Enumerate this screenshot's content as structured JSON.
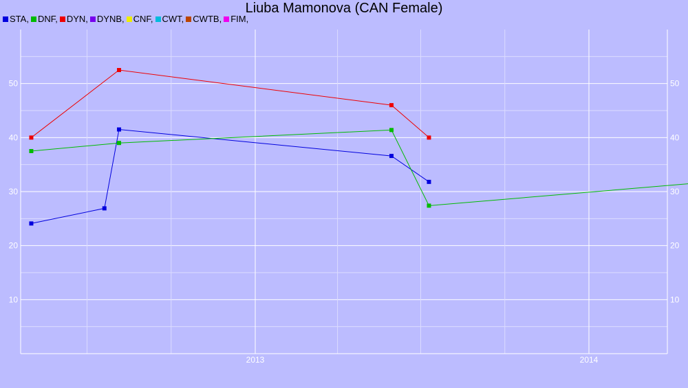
{
  "chart_data": {
    "type": "line",
    "title": "Liuba Mamonova (CAN Female)",
    "x_ticks": [
      "2013",
      "2014"
    ],
    "y_ticks": [
      10,
      20,
      30,
      40,
      50
    ],
    "ylim": [
      0,
      60
    ],
    "grid": true,
    "legend": [
      {
        "name": "STA",
        "label": "STA,",
        "color": "#0000dd"
      },
      {
        "name": "DNF",
        "label": "DNF,",
        "color": "#00bb00"
      },
      {
        "name": "DYN",
        "label": "DYN,",
        "color": "#ee0000"
      },
      {
        "name": "DYNB",
        "label": "DYNB,",
        "color": "#7700ee"
      },
      {
        "name": "CNF",
        "label": "CNF,",
        "color": "#eeee00"
      },
      {
        "name": "CWT",
        "label": "CWT,",
        "color": "#00bbdd"
      },
      {
        "name": "CWTB",
        "label": "CWTB,",
        "color": "#bb4400"
      },
      {
        "name": "FIM",
        "label": "FIM,",
        "color": "#ee00ee"
      }
    ],
    "series": [
      {
        "name": "STA",
        "color": "#0000dd",
        "points": [
          [
            "2012-05-01",
            24.1
          ],
          [
            "2012-07-20",
            26.9
          ],
          [
            "2012-08-05",
            41.5
          ],
          [
            "2013-05-30",
            36.6
          ],
          [
            "2013-07-10",
            31.8
          ]
        ]
      },
      {
        "name": "DNF",
        "color": "#00bb00",
        "points": [
          [
            "2012-05-01",
            37.5
          ],
          [
            "2012-08-05",
            39.0
          ],
          [
            "2013-05-30",
            41.4
          ],
          [
            "2013-07-10",
            27.4
          ],
          [
            "2014-09-10",
            33.5
          ]
        ]
      },
      {
        "name": "DYN",
        "color": "#ee0000",
        "points": [
          [
            "2012-05-01",
            40.0
          ],
          [
            "2012-08-05",
            52.5
          ],
          [
            "2013-05-30",
            46.0
          ],
          [
            "2013-07-10",
            40.0
          ]
        ]
      }
    ]
  }
}
